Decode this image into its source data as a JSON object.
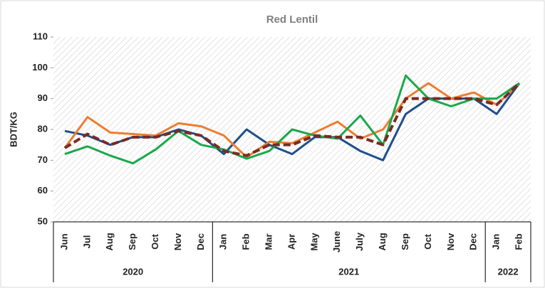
{
  "chart_data": {
    "type": "line",
    "title": "Red Lentil",
    "y_label": "BDT/KG",
    "categories": [
      "Jun",
      "Jul",
      "Aug",
      "Sep",
      "Oct",
      "Nov",
      "Dec",
      "Jan",
      "Feb",
      "Mar",
      "Apr",
      "May",
      "June",
      "July",
      "Aug",
      "Sep",
      "Oct",
      "Nov",
      "Dec",
      "Jan",
      "Feb"
    ],
    "groups": [
      {
        "label": "2020",
        "count": 7
      },
      {
        "label": "2021",
        "count": 12
      },
      {
        "label": "2022",
        "count": 2
      }
    ],
    "ylim": [
      50,
      110
    ],
    "yticks": [
      50,
      60,
      70,
      80,
      90,
      100,
      110
    ],
    "series": [
      {
        "color": "#1f4e8c",
        "values": [
          79.5,
          78,
          75,
          77.5,
          77.5,
          80,
          78,
          72,
          80,
          75,
          72,
          77.5,
          77.5,
          73,
          70,
          85,
          90,
          90,
          90,
          85,
          95
        ]
      },
      {
        "color": "#ed7d31",
        "values": [
          74,
          84,
          79,
          78.5,
          78,
          82,
          81,
          78,
          71,
          76,
          75.5,
          79,
          82.5,
          77,
          80,
          90,
          95,
          90,
          92,
          88,
          95
        ]
      },
      {
        "color": "#1aa84b",
        "values": [
          72,
          74.5,
          71.5,
          69,
          73.5,
          79.5,
          75,
          73.5,
          70.5,
          73,
          80,
          78,
          77,
          84.5,
          75,
          97.5,
          90,
          87.5,
          90,
          90,
          95
        ]
      },
      {
        "color": "#7b2a22",
        "dashed": true,
        "values": [
          74,
          78.5,
          75,
          77.5,
          77.5,
          79.5,
          78,
          73,
          71.5,
          75,
          75,
          78,
          77.5,
          77.5,
          75,
          90,
          90,
          90,
          90,
          88,
          95
        ]
      }
    ]
  }
}
